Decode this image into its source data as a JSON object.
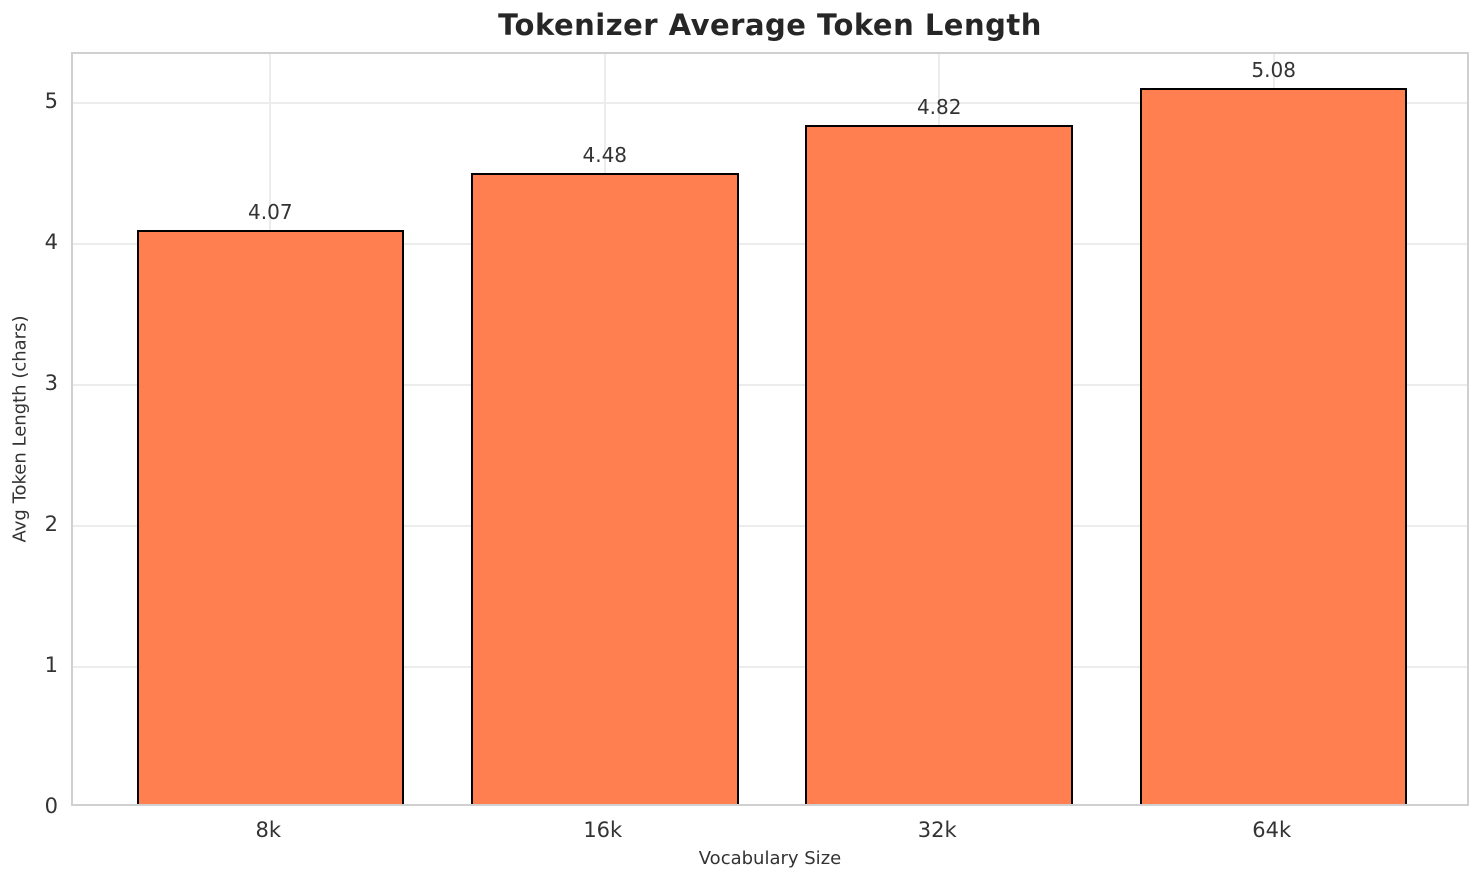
{
  "chart_data": {
    "type": "bar",
    "title": "Tokenizer Average Token Length",
    "xlabel": "Vocabulary Size",
    "ylabel": "Avg Token Length (chars)",
    "categories": [
      "8k",
      "16k",
      "32k",
      "64k"
    ],
    "values": [
      4.07,
      4.48,
      4.82,
      5.08
    ],
    "bar_labels": [
      "4.07",
      "4.48",
      "4.82",
      "5.08"
    ],
    "yticks": [
      0,
      1,
      2,
      3,
      4,
      5
    ],
    "ytick_labels": [
      "0",
      "1",
      "2",
      "3",
      "4",
      "5"
    ],
    "ylim": [
      0,
      5.35
    ],
    "grid": "on",
    "legend": "none",
    "colors": {
      "bar_fill": "#FF7F50",
      "bar_edge": "#000000",
      "grid_line": "#ececec",
      "spine": "#d0d0d0",
      "text": "#333333",
      "title_text": "#262626",
      "background": "#ffffff"
    }
  }
}
